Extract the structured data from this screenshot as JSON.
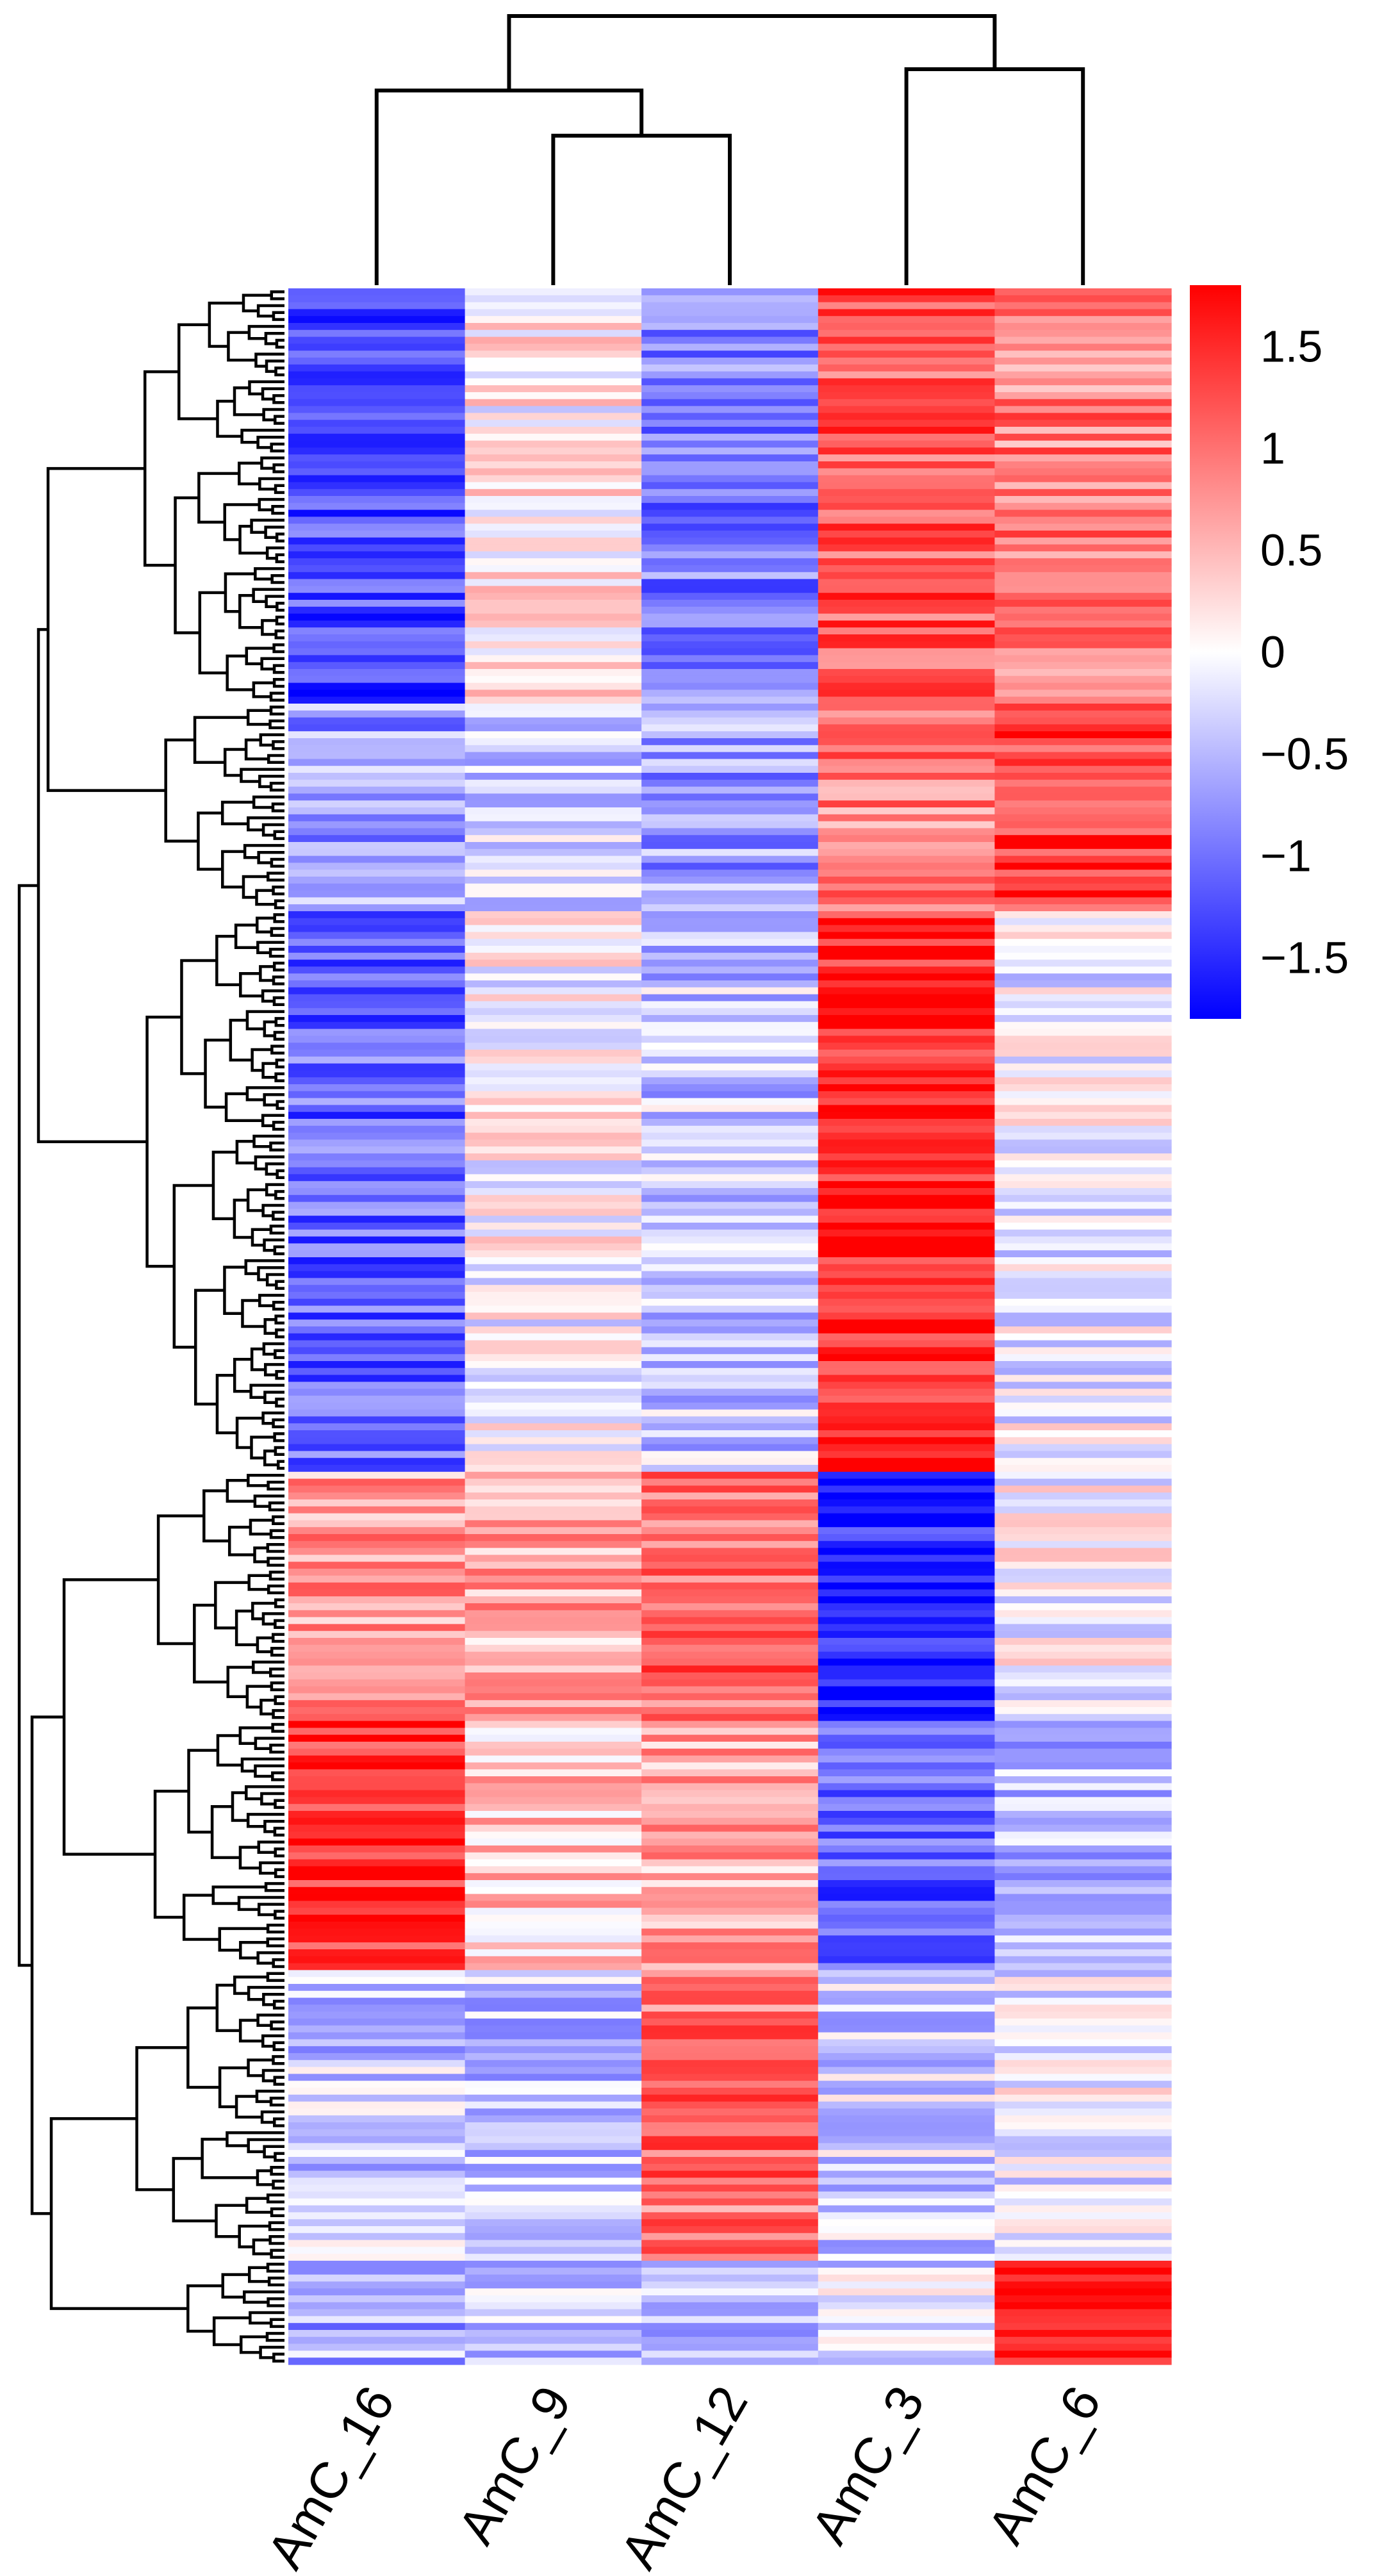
{
  "chart_data": {
    "type": "heatmap",
    "title": "",
    "xlabel": "",
    "ylabel": "",
    "columns": [
      "AmC_16",
      "AmC_9",
      "AmC_12",
      "AmC_3",
      "AmC_6"
    ],
    "row_count": 300,
    "value_range": [
      -1.8,
      1.8
    ],
    "color_scale": {
      "low": "#0000ff",
      "mid": "#ffffff",
      "high": "#ff0000"
    },
    "legend": {
      "placement": "right",
      "ticks": [
        {
          "value": 1.5,
          "label": "1.5"
        },
        {
          "value": 1,
          "label": "1"
        },
        {
          "value": 0.5,
          "label": "0.5"
        },
        {
          "value": 0,
          "label": "0"
        },
        {
          "value": -0.5,
          "label": "−0.5"
        },
        {
          "value": -1,
          "label": "−1"
        },
        {
          "value": -1.5,
          "label": "−1.5"
        }
      ]
    },
    "column_dendrogram": {
      "merges": [
        {
          "left": "AmC_9",
          "right": "AmC_12",
          "height": 0.55
        },
        {
          "left": "AmC_16",
          "right": "AmC_9+AmC_12",
          "height": 0.72
        },
        {
          "left": "AmC_3",
          "right": "AmC_6",
          "height": 0.8
        },
        {
          "left": "AmC_16+AmC_9+AmC_12",
          "right": "AmC_3+AmC_6",
          "height": 1.0
        }
      ]
    },
    "row_clusters": [
      {
        "fraction": 0.2,
        "values": [
          -1.3,
          0.1,
          -0.9,
          1.2,
          0.9
        ]
      },
      {
        "fraction": 0.1,
        "values": [
          -0.7,
          -0.3,
          -0.7,
          0.9,
          1.4
        ]
      },
      {
        "fraction": 0.27,
        "values": [
          -1.1,
          0.0,
          -0.4,
          1.6,
          -0.1
        ]
      },
      {
        "fraction": 0.12,
        "values": [
          0.7,
          0.6,
          1.1,
          -1.6,
          0.0
        ]
      },
      {
        "fraction": 0.12,
        "values": [
          1.5,
          0.4,
          0.6,
          -1.1,
          -0.5
        ]
      },
      {
        "fraction": 0.14,
        "values": [
          -0.4,
          -0.4,
          1.0,
          -0.3,
          -0.1
        ]
      },
      {
        "fraction": 0.15,
        "values": [
          -0.6,
          -0.3,
          -0.5,
          -0.3,
          1.6
        ]
      }
    ]
  }
}
